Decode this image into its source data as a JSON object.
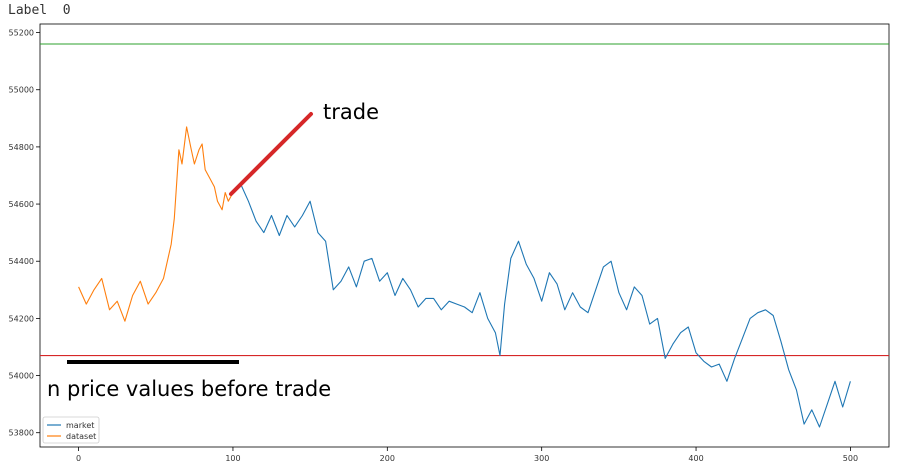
{
  "header": {
    "label": "Label  0"
  },
  "chart_data": {
    "type": "line",
    "xlim": [
      -25,
      525
    ],
    "ylim": [
      53750,
      55230
    ],
    "xticks": [
      0,
      100,
      200,
      300,
      400,
      500
    ],
    "yticks": [
      53800,
      54000,
      54200,
      54400,
      54600,
      54800,
      55000,
      55200
    ],
    "grid": false,
    "legend_position": "lower-left",
    "hlines": [
      {
        "y": 55160,
        "color": "#2ca02c"
      },
      {
        "y": 54070,
        "color": "#d62728"
      }
    ],
    "series": [
      {
        "name": "market",
        "color": "#1f77b4",
        "x": [
          100,
          105,
          110,
          115,
          120,
          125,
          130,
          135,
          140,
          145,
          150,
          155,
          160,
          165,
          170,
          175,
          180,
          185,
          190,
          195,
          200,
          205,
          210,
          215,
          220,
          225,
          230,
          235,
          240,
          245,
          250,
          255,
          260,
          265,
          270,
          273,
          276,
          280,
          285,
          290,
          295,
          300,
          305,
          310,
          315,
          320,
          325,
          330,
          335,
          340,
          345,
          350,
          355,
          360,
          365,
          370,
          375,
          380,
          385,
          390,
          395,
          400,
          405,
          410,
          415,
          420,
          425,
          430,
          435,
          440,
          445,
          450,
          455,
          460,
          465,
          470,
          475,
          480,
          485,
          490,
          495,
          500
        ],
        "values": [
          54640,
          54670,
          54610,
          54540,
          54500,
          54560,
          54490,
          54560,
          54520,
          54560,
          54610,
          54500,
          54470,
          54300,
          54330,
          54380,
          54310,
          54400,
          54410,
          54330,
          54360,
          54280,
          54340,
          54300,
          54240,
          54270,
          54270,
          54230,
          54260,
          54250,
          54240,
          54220,
          54290,
          54200,
          54150,
          54070,
          54250,
          54410,
          54470,
          54390,
          54340,
          54260,
          54360,
          54320,
          54230,
          54290,
          54240,
          54220,
          54300,
          54380,
          54400,
          54290,
          54230,
          54310,
          54280,
          54180,
          54200,
          54060,
          54110,
          54150,
          54170,
          54080,
          54050,
          54030,
          54040,
          53980,
          54060,
          54130,
          54200,
          54220,
          54230,
          54210,
          54120,
          54020,
          53950,
          53830,
          53880,
          53820,
          53900,
          53980,
          53890,
          53980
        ]
      },
      {
        "name": "dataset",
        "color": "#ff7f0e",
        "x": [
          0,
          5,
          10,
          15,
          20,
          25,
          30,
          35,
          40,
          45,
          50,
          55,
          60,
          62,
          65,
          67,
          70,
          73,
          75,
          78,
          80,
          82,
          85,
          88,
          90,
          93,
          95,
          97,
          100
        ],
        "values": [
          54310,
          54250,
          54300,
          54340,
          54230,
          54260,
          54190,
          54280,
          54330,
          54250,
          54290,
          54340,
          54460,
          54550,
          54790,
          54740,
          54870,
          54790,
          54740,
          54790,
          54810,
          54720,
          54690,
          54660,
          54610,
          54580,
          54640,
          54610,
          54640
        ]
      }
    ]
  },
  "annotations": {
    "trade_label": "trade",
    "n_price_label": "n price values before trade"
  }
}
